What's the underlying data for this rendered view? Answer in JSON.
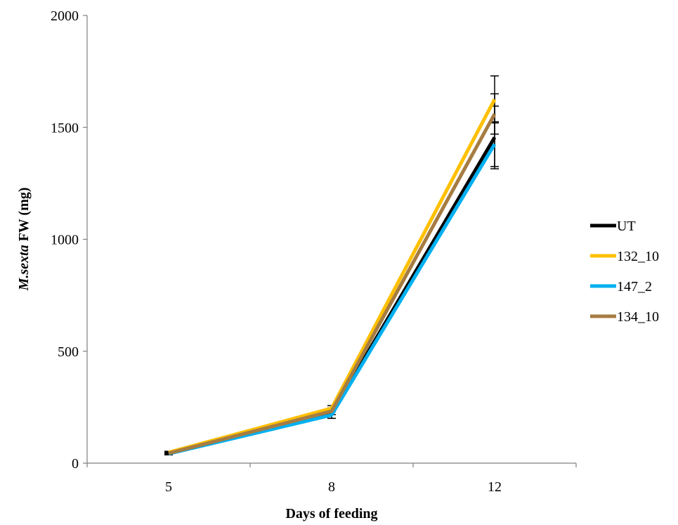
{
  "chart_data": {
    "type": "line",
    "title": "",
    "xlabel": "Days of feeding",
    "ylabel_italic": "M.sexta",
    "ylabel_rest": " FW (mg)",
    "categories": [
      "5",
      "8",
      "12"
    ],
    "ylim": [
      0,
      2000
    ],
    "yticks": [
      0,
      500,
      1000,
      1500,
      2000
    ],
    "grid": false,
    "legend_position": "right",
    "series": [
      {
        "name": "UT",
        "color": "#000000",
        "values": [
          45,
          220,
          1455
        ],
        "errors": [
          5,
          20,
          140
        ]
      },
      {
        "name": "132_10",
        "color": "#FFC000",
        "values": [
          48,
          245,
          1625
        ],
        "errors": [
          5,
          12,
          105
        ]
      },
      {
        "name": "147_2",
        "color": "#00B0F0",
        "values": [
          42,
          215,
          1425
        ],
        "errors": [
          5,
          15,
          100
        ]
      },
      {
        "name": "134_10",
        "color": "#A67C42",
        "values": [
          44,
          232,
          1560
        ],
        "errors": [
          5,
          15,
          90
        ]
      }
    ]
  }
}
